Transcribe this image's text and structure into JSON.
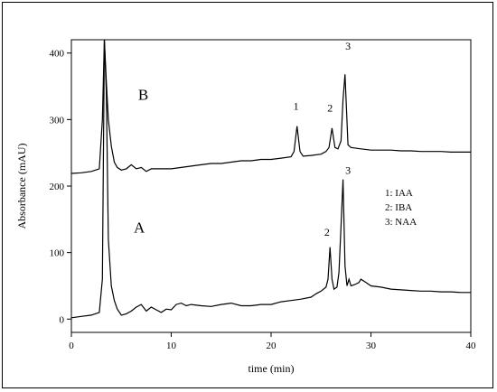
{
  "chart_data": {
    "type": "line",
    "xlabel": "time (min)",
    "ylabel": "Absorbance (mAU)",
    "xlim": [
      0,
      40
    ],
    "ylim": [
      -20,
      420
    ],
    "x_ticks": [
      0,
      10,
      20,
      30,
      40
    ],
    "y_ticks": [
      0,
      100,
      200,
      300,
      400
    ],
    "grid": false,
    "legend": {
      "placement": "right",
      "entries": [
        "1: IAA",
        "2: IBA",
        "3: NAA"
      ]
    },
    "series": [
      {
        "name": "A",
        "x": [
          0,
          1,
          2,
          2.8,
          3.1,
          3.3,
          3.5,
          3.7,
          4.0,
          4.3,
          4.6,
          5.0,
          5.5,
          6.0,
          6.5,
          7.0,
          7.5,
          8.0,
          8.5,
          9.0,
          9.5,
          10.0,
          10.5,
          11.0,
          11.5,
          12.0,
          13.0,
          14.0,
          15.0,
          16.0,
          17.0,
          18.0,
          19.0,
          20.0,
          21.0,
          22.0,
          23.0,
          24.0,
          24.5,
          25.0,
          25.5,
          25.7,
          25.9,
          26.1,
          26.3,
          26.6,
          26.8,
          27.0,
          27.2,
          27.4,
          27.6,
          27.8,
          28.0,
          28.4,
          28.8,
          29.0,
          29.5,
          30.0,
          31.0,
          32.0,
          33.0,
          34.0,
          35.0,
          36.0,
          37.0,
          38.0,
          39.0,
          40.0
        ],
        "y": [
          2,
          4,
          6,
          10,
          60,
          420,
          340,
          120,
          50,
          28,
          15,
          6,
          8,
          12,
          18,
          22,
          12,
          18,
          14,
          10,
          15,
          14,
          22,
          24,
          20,
          22,
          20,
          19,
          22,
          24,
          20,
          20,
          22,
          22,
          26,
          28,
          30,
          33,
          38,
          42,
          48,
          60,
          108,
          60,
          45,
          48,
          70,
          140,
          210,
          80,
          50,
          60,
          50,
          52,
          55,
          60,
          55,
          50,
          48,
          45,
          44,
          43,
          42,
          42,
          41,
          41,
          40,
          40
        ]
      },
      {
        "name": "B",
        "x": [
          0,
          1,
          2,
          2.8,
          3.1,
          3.3,
          3.5,
          3.7,
          4.0,
          4.3,
          4.6,
          5.0,
          5.5,
          6.0,
          6.5,
          7.0,
          7.5,
          8.0,
          9.0,
          10.0,
          11.0,
          12.0,
          13.0,
          14.0,
          15.0,
          16.0,
          17.0,
          18.0,
          19.0,
          20.0,
          21.0,
          22.0,
          22.3,
          22.6,
          22.9,
          23.2,
          24.0,
          25.0,
          25.5,
          25.8,
          26.1,
          26.4,
          26.7,
          27.0,
          27.2,
          27.4,
          27.7,
          28.0,
          29.0,
          30.0,
          31.0,
          32.0,
          33.0,
          34.0,
          35.0,
          36.0,
          37.0,
          38.0,
          39.0,
          40.0
        ],
        "y": [
          219,
          220,
          222,
          226,
          300,
          420,
          356,
          300,
          260,
          236,
          228,
          224,
          226,
          232,
          226,
          228,
          222,
          226,
          226,
          226,
          228,
          230,
          232,
          234,
          234,
          236,
          238,
          238,
          240,
          240,
          242,
          244,
          252,
          290,
          252,
          245,
          246,
          248,
          252,
          258,
          287,
          258,
          256,
          268,
          330,
          368,
          262,
          258,
          256,
          254,
          254,
          254,
          253,
          253,
          252,
          252,
          252,
          251,
          251,
          251
        ]
      }
    ],
    "annotations": {
      "trace_labels": [
        {
          "text": "B",
          "x": 7.2,
          "y": 330
        },
        {
          "text": "A",
          "x": 6.8,
          "y": 130
        }
      ],
      "peaks": [
        {
          "text": "1",
          "x": 22.5,
          "y": 315
        },
        {
          "text": "2",
          "x": 25.9,
          "y": 312
        },
        {
          "text": "3",
          "x": 27.7,
          "y": 405
        },
        {
          "text": "3",
          "x": 27.7,
          "y": 218
        },
        {
          "text": "2",
          "x": 25.6,
          "y": 125
        }
      ]
    }
  }
}
